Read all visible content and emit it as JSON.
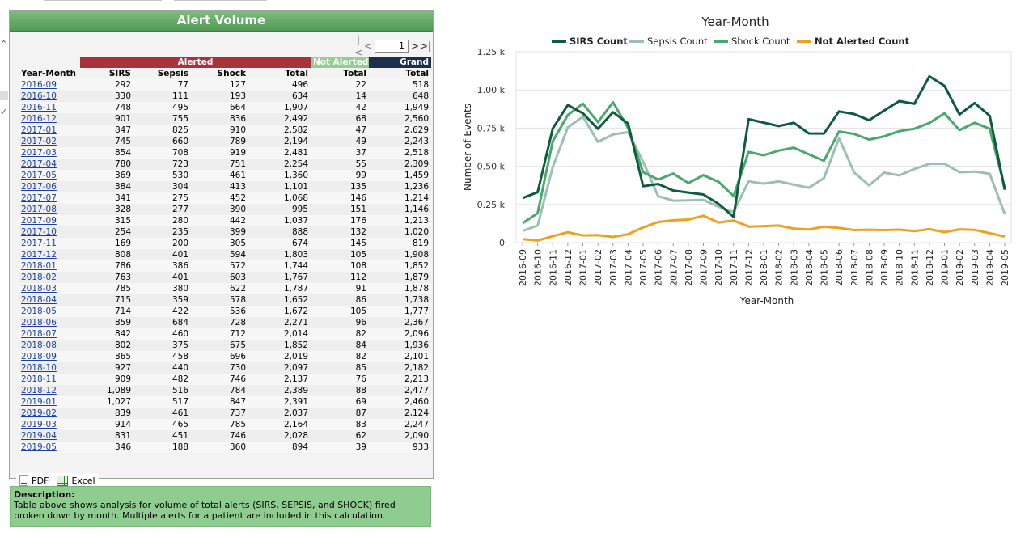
{
  "panel": {
    "title": "Alert Volume",
    "pager": {
      "first_icon": "first-page-icon",
      "prev_icon": "prev-page-icon",
      "page": "1",
      "next_icon": "next-page-icon",
      "last_icon": "last-page-icon"
    },
    "header_groups": {
      "alerted": "Alerted",
      "not_alerted": "Not Alerted",
      "grand": "Grand"
    },
    "columns": [
      "Year-Month",
      "SIRS",
      "Sepsis",
      "Shock",
      "Total",
      "Total",
      "Total"
    ],
    "rows": [
      [
        "2016-09",
        "292",
        "77",
        "127",
        "496",
        "22",
        "518"
      ],
      [
        "2016-10",
        "330",
        "111",
        "193",
        "634",
        "14",
        "648"
      ],
      [
        "2016-11",
        "748",
        "495",
        "664",
        "1,907",
        "42",
        "1,949"
      ],
      [
        "2016-12",
        "901",
        "755",
        "836",
        "2,492",
        "68",
        "2,560"
      ],
      [
        "2017-01",
        "847",
        "825",
        "910",
        "2,582",
        "47",
        "2,629"
      ],
      [
        "2017-02",
        "745",
        "660",
        "789",
        "2,194",
        "49",
        "2,243"
      ],
      [
        "2017-03",
        "854",
        "708",
        "919",
        "2,481",
        "37",
        "2,518"
      ],
      [
        "2017-04",
        "780",
        "723",
        "751",
        "2,254",
        "55",
        "2,309"
      ],
      [
        "2017-05",
        "369",
        "530",
        "461",
        "1,360",
        "99",
        "1,459"
      ],
      [
        "2017-06",
        "384",
        "304",
        "413",
        "1,101",
        "135",
        "1,236"
      ],
      [
        "2017-07",
        "341",
        "275",
        "452",
        "1,068",
        "146",
        "1,214"
      ],
      [
        "2017-08",
        "328",
        "277",
        "390",
        "995",
        "151",
        "1,146"
      ],
      [
        "2017-09",
        "315",
        "280",
        "442",
        "1,037",
        "176",
        "1,213"
      ],
      [
        "2017-10",
        "254",
        "235",
        "399",
        "888",
        "132",
        "1,020"
      ],
      [
        "2017-11",
        "169",
        "200",
        "305",
        "674",
        "145",
        "819"
      ],
      [
        "2017-12",
        "808",
        "401",
        "594",
        "1,803",
        "105",
        "1,908"
      ],
      [
        "2018-01",
        "786",
        "386",
        "572",
        "1,744",
        "108",
        "1,852"
      ],
      [
        "2018-02",
        "763",
        "401",
        "603",
        "1,767",
        "112",
        "1,879"
      ],
      [
        "2018-03",
        "785",
        "380",
        "622",
        "1,787",
        "91",
        "1,878"
      ],
      [
        "2018-04",
        "715",
        "359",
        "578",
        "1,652",
        "86",
        "1,738"
      ],
      [
        "2018-05",
        "714",
        "422",
        "536",
        "1,672",
        "105",
        "1,777"
      ],
      [
        "2018-06",
        "859",
        "684",
        "728",
        "2,271",
        "96",
        "2,367"
      ],
      [
        "2018-07",
        "842",
        "460",
        "712",
        "2,014",
        "82",
        "2,096"
      ],
      [
        "2018-08",
        "802",
        "375",
        "675",
        "1,852",
        "84",
        "1,936"
      ],
      [
        "2018-09",
        "865",
        "458",
        "696",
        "2,019",
        "82",
        "2,101"
      ],
      [
        "2018-10",
        "927",
        "440",
        "730",
        "2,097",
        "85",
        "2,182"
      ],
      [
        "2018-11",
        "909",
        "482",
        "746",
        "2,137",
        "76",
        "2,213"
      ],
      [
        "2018-12",
        "1,089",
        "516",
        "784",
        "2,389",
        "88",
        "2,477"
      ],
      [
        "2019-01",
        "1,027",
        "517",
        "847",
        "2,391",
        "69",
        "2,460"
      ],
      [
        "2019-02",
        "839",
        "461",
        "737",
        "2,037",
        "87",
        "2,124"
      ],
      [
        "2019-03",
        "914",
        "465",
        "785",
        "2,164",
        "83",
        "2,247"
      ],
      [
        "2019-04",
        "831",
        "451",
        "746",
        "2,028",
        "62",
        "2,090"
      ],
      [
        "2019-05",
        "346",
        "188",
        "360",
        "894",
        "39",
        "933"
      ]
    ]
  },
  "exports": {
    "pdf_label": "PDF",
    "excel_label": "Excel"
  },
  "description": {
    "heading": "Description:",
    "text": "Table above shows analysis for volume of total alerts (SIRS, SEPSIS, and SHOCK) fired broken down by month. Multiple alerts for a patient are included in this calculation."
  },
  "chart_data": {
    "type": "line",
    "title": "Year-Month",
    "xlabel": "Year-Month",
    "ylabel": "Number of Events",
    "ylim": [
      0,
      1250
    ],
    "yticks": [
      0,
      250,
      500,
      750,
      1000,
      1250
    ],
    "ytick_labels": [
      "0",
      "0.25 k",
      "0.50 k",
      "0.75 k",
      "1.00 k",
      "1.25 k"
    ],
    "grid": true,
    "legend_position": "top",
    "categories": [
      "2016-09",
      "2016-10",
      "2016-11",
      "2016-12",
      "2017-01",
      "2017-02",
      "2017-03",
      "2017-04",
      "2017-05",
      "2017-06",
      "2017-07",
      "2017-08",
      "2017-09",
      "2017-10",
      "2017-11",
      "2017-12",
      "2018-01",
      "2018-02",
      "2018-03",
      "2018-04",
      "2018-05",
      "2018-06",
      "2018-07",
      "2018-08",
      "2018-09",
      "2018-10",
      "2018-11",
      "2018-12",
      "2019-01",
      "2019-02",
      "2019-03",
      "2019-04",
      "2019-05"
    ],
    "series": [
      {
        "name": "SIRS Count",
        "color": "#0e5c3e",
        "bold": true,
        "values": [
          292,
          330,
          748,
          901,
          847,
          745,
          854,
          780,
          369,
          384,
          341,
          328,
          315,
          254,
          169,
          808,
          786,
          763,
          785,
          715,
          714,
          859,
          842,
          802,
          865,
          927,
          909,
          1089,
          1027,
          839,
          914,
          831,
          346
        ]
      },
      {
        "name": "Sepsis Count",
        "color": "#9dbfb1",
        "bold": false,
        "values": [
          77,
          111,
          495,
          755,
          825,
          660,
          708,
          723,
          530,
          304,
          275,
          277,
          280,
          235,
          200,
          401,
          386,
          401,
          380,
          359,
          422,
          684,
          460,
          375,
          458,
          440,
          482,
          516,
          517,
          461,
          465,
          451,
          188
        ]
      },
      {
        "name": "Shock Count",
        "color": "#4aa86a",
        "bold": false,
        "values": [
          127,
          193,
          664,
          836,
          910,
          789,
          919,
          751,
          461,
          413,
          452,
          390,
          442,
          399,
          305,
          594,
          572,
          603,
          622,
          578,
          536,
          728,
          712,
          675,
          696,
          730,
          746,
          784,
          847,
          737,
          785,
          746,
          360
        ]
      },
      {
        "name": "Not Alerted Count",
        "color": "#f0a020",
        "bold": true,
        "values": [
          22,
          14,
          42,
          68,
          47,
          49,
          37,
          55,
          99,
          135,
          146,
          151,
          176,
          132,
          145,
          105,
          108,
          112,
          91,
          86,
          105,
          96,
          82,
          84,
          82,
          85,
          76,
          88,
          69,
          87,
          83,
          62,
          39
        ]
      }
    ]
  }
}
